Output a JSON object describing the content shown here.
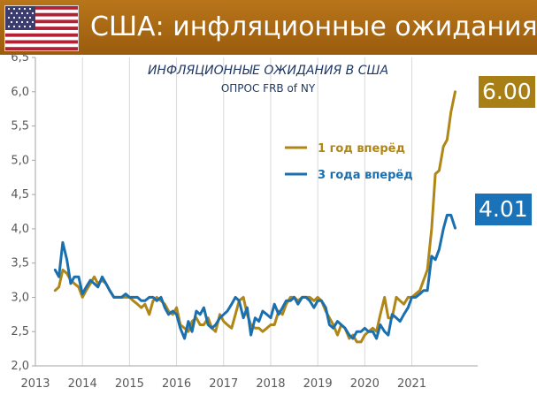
{
  "header": {
    "title": "США: инфляционные ожидания",
    "colors": {
      "banner": "#a9650f",
      "text": "#ffffff"
    }
  },
  "callouts": {
    "one_year_value": "6.00",
    "three_year_value": "4.01"
  },
  "chart_data": {
    "type": "line",
    "title": "ИНФЛЯЦИОННЫЕ ОЖИДАНИЯ В США",
    "subtitle": "ОПРОС FRB of NY",
    "xlabel": "",
    "ylabel": "",
    "xlim": [
      2013,
      2022.4
    ],
    "ylim": [
      2.0,
      6.5
    ],
    "xticks": [
      "2013",
      "2014",
      "2015",
      "2016",
      "2017",
      "2018",
      "2019",
      "2020",
      "2021"
    ],
    "yticks": [
      "2,0",
      "2,5",
      "3,0",
      "3,5",
      "4,0",
      "4,5",
      "5,0",
      "5,5",
      "6,0",
      "6,5"
    ],
    "grid": "vertical",
    "legend_position": "upper-center",
    "series": [
      {
        "name": "1 год вперёд",
        "color": "#b08617",
        "points": [
          [
            2013.42,
            3.1
          ],
          [
            2013.5,
            3.15
          ],
          [
            2013.58,
            3.4
          ],
          [
            2013.67,
            3.35
          ],
          [
            2013.75,
            3.25
          ],
          [
            2013.83,
            3.2
          ],
          [
            2013.92,
            3.15
          ],
          [
            2014.0,
            3.0
          ],
          [
            2014.08,
            3.1
          ],
          [
            2014.17,
            3.2
          ],
          [
            2014.25,
            3.3
          ],
          [
            2014.33,
            3.2
          ],
          [
            2014.42,
            3.25
          ],
          [
            2014.5,
            3.2
          ],
          [
            2014.58,
            3.1
          ],
          [
            2014.67,
            3.0
          ],
          [
            2014.75,
            3.0
          ],
          [
            2014.83,
            3.0
          ],
          [
            2014.92,
            3.0
          ],
          [
            2015.0,
            3.0
          ],
          [
            2015.08,
            2.95
          ],
          [
            2015.17,
            2.9
          ],
          [
            2015.25,
            2.85
          ],
          [
            2015.33,
            2.9
          ],
          [
            2015.42,
            2.75
          ],
          [
            2015.5,
            2.95
          ],
          [
            2015.58,
            3.0
          ],
          [
            2015.67,
            2.95
          ],
          [
            2015.75,
            2.9
          ],
          [
            2015.83,
            2.8
          ],
          [
            2015.92,
            2.75
          ],
          [
            2016.0,
            2.85
          ],
          [
            2016.08,
            2.6
          ],
          [
            2016.17,
            2.55
          ],
          [
            2016.25,
            2.5
          ],
          [
            2016.33,
            2.65
          ],
          [
            2016.42,
            2.7
          ],
          [
            2016.5,
            2.6
          ],
          [
            2016.58,
            2.6
          ],
          [
            2016.67,
            2.7
          ],
          [
            2016.75,
            2.55
          ],
          [
            2016.83,
            2.5
          ],
          [
            2016.92,
            2.75
          ],
          [
            2017.0,
            2.65
          ],
          [
            2017.08,
            2.6
          ],
          [
            2017.17,
            2.55
          ],
          [
            2017.25,
            2.75
          ],
          [
            2017.33,
            2.95
          ],
          [
            2017.42,
            3.0
          ],
          [
            2017.5,
            2.75
          ],
          [
            2017.58,
            2.6
          ],
          [
            2017.67,
            2.55
          ],
          [
            2017.75,
            2.55
          ],
          [
            2017.83,
            2.5
          ],
          [
            2017.92,
            2.55
          ],
          [
            2018.0,
            2.6
          ],
          [
            2018.08,
            2.6
          ],
          [
            2018.17,
            2.8
          ],
          [
            2018.25,
            2.75
          ],
          [
            2018.33,
            2.9
          ],
          [
            2018.42,
            3.0
          ],
          [
            2018.5,
            3.0
          ],
          [
            2018.58,
            2.95
          ],
          [
            2018.67,
            3.0
          ],
          [
            2018.75,
            3.0
          ],
          [
            2018.83,
            3.0
          ],
          [
            2018.92,
            2.95
          ],
          [
            2019.0,
            3.0
          ],
          [
            2019.08,
            2.95
          ],
          [
            2019.17,
            2.8
          ],
          [
            2019.25,
            2.7
          ],
          [
            2019.33,
            2.6
          ],
          [
            2019.42,
            2.45
          ],
          [
            2019.5,
            2.6
          ],
          [
            2019.58,
            2.55
          ],
          [
            2019.67,
            2.4
          ],
          [
            2019.75,
            2.45
          ],
          [
            2019.83,
            2.35
          ],
          [
            2019.92,
            2.35
          ],
          [
            2020.0,
            2.45
          ],
          [
            2020.08,
            2.5
          ],
          [
            2020.17,
            2.55
          ],
          [
            2020.25,
            2.5
          ],
          [
            2020.33,
            2.75
          ],
          [
            2020.42,
            3.0
          ],
          [
            2020.5,
            2.7
          ],
          [
            2020.58,
            2.7
          ],
          [
            2020.67,
            3.0
          ],
          [
            2020.75,
            2.95
          ],
          [
            2020.83,
            2.9
          ],
          [
            2020.92,
            3.0
          ],
          [
            2021.0,
            3.0
          ],
          [
            2021.08,
            3.05
          ],
          [
            2021.17,
            3.1
          ],
          [
            2021.25,
            3.25
          ],
          [
            2021.33,
            3.4
          ],
          [
            2021.42,
            4.0
          ],
          [
            2021.5,
            4.8
          ],
          [
            2021.58,
            4.85
          ],
          [
            2021.67,
            5.2
          ],
          [
            2021.75,
            5.3
          ],
          [
            2021.83,
            5.7
          ],
          [
            2021.92,
            6.0
          ]
        ]
      },
      {
        "name": "3 года вперёд",
        "color": "#1a6faf",
        "points": [
          [
            2013.42,
            3.4
          ],
          [
            2013.5,
            3.3
          ],
          [
            2013.58,
            3.8
          ],
          [
            2013.67,
            3.55
          ],
          [
            2013.75,
            3.2
          ],
          [
            2013.83,
            3.3
          ],
          [
            2013.92,
            3.3
          ],
          [
            2014.0,
            3.05
          ],
          [
            2014.08,
            3.15
          ],
          [
            2014.17,
            3.25
          ],
          [
            2014.25,
            3.2
          ],
          [
            2014.33,
            3.15
          ],
          [
            2014.42,
            3.3
          ],
          [
            2014.5,
            3.2
          ],
          [
            2014.58,
            3.1
          ],
          [
            2014.67,
            3.0
          ],
          [
            2014.75,
            3.0
          ],
          [
            2014.83,
            3.0
          ],
          [
            2014.92,
            3.05
          ],
          [
            2015.0,
            3.0
          ],
          [
            2015.08,
            3.0
          ],
          [
            2015.17,
            3.0
          ],
          [
            2015.25,
            2.95
          ],
          [
            2015.33,
            2.95
          ],
          [
            2015.42,
            3.0
          ],
          [
            2015.5,
            3.0
          ],
          [
            2015.58,
            2.95
          ],
          [
            2015.67,
            3.0
          ],
          [
            2015.75,
            2.85
          ],
          [
            2015.83,
            2.75
          ],
          [
            2015.92,
            2.8
          ],
          [
            2016.0,
            2.75
          ],
          [
            2016.08,
            2.55
          ],
          [
            2016.17,
            2.4
          ],
          [
            2016.25,
            2.65
          ],
          [
            2016.33,
            2.5
          ],
          [
            2016.42,
            2.8
          ],
          [
            2016.5,
            2.75
          ],
          [
            2016.58,
            2.85
          ],
          [
            2016.67,
            2.6
          ],
          [
            2016.75,
            2.55
          ],
          [
            2016.83,
            2.6
          ],
          [
            2016.92,
            2.7
          ],
          [
            2017.0,
            2.75
          ],
          [
            2017.08,
            2.8
          ],
          [
            2017.17,
            2.9
          ],
          [
            2017.25,
            3.0
          ],
          [
            2017.33,
            2.95
          ],
          [
            2017.42,
            2.7
          ],
          [
            2017.5,
            2.85
          ],
          [
            2017.58,
            2.45
          ],
          [
            2017.67,
            2.7
          ],
          [
            2017.75,
            2.65
          ],
          [
            2017.83,
            2.8
          ],
          [
            2017.92,
            2.75
          ],
          [
            2018.0,
            2.7
          ],
          [
            2018.08,
            2.9
          ],
          [
            2018.17,
            2.75
          ],
          [
            2018.25,
            2.85
          ],
          [
            2018.33,
            2.95
          ],
          [
            2018.42,
            2.95
          ],
          [
            2018.5,
            3.0
          ],
          [
            2018.58,
            2.9
          ],
          [
            2018.67,
            3.0
          ],
          [
            2018.75,
            3.0
          ],
          [
            2018.83,
            2.95
          ],
          [
            2018.92,
            2.85
          ],
          [
            2019.0,
            2.95
          ],
          [
            2019.08,
            2.95
          ],
          [
            2019.17,
            2.85
          ],
          [
            2019.25,
            2.6
          ],
          [
            2019.33,
            2.55
          ],
          [
            2019.42,
            2.65
          ],
          [
            2019.5,
            2.6
          ],
          [
            2019.58,
            2.55
          ],
          [
            2019.67,
            2.45
          ],
          [
            2019.75,
            2.4
          ],
          [
            2019.83,
            2.5
          ],
          [
            2019.92,
            2.5
          ],
          [
            2020.0,
            2.55
          ],
          [
            2020.08,
            2.5
          ],
          [
            2020.17,
            2.5
          ],
          [
            2020.25,
            2.4
          ],
          [
            2020.33,
            2.6
          ],
          [
            2020.42,
            2.5
          ],
          [
            2020.5,
            2.45
          ],
          [
            2020.58,
            2.75
          ],
          [
            2020.67,
            2.7
          ],
          [
            2020.75,
            2.65
          ],
          [
            2020.83,
            2.75
          ],
          [
            2020.92,
            2.85
          ],
          [
            2021.0,
            3.0
          ],
          [
            2021.08,
            3.0
          ],
          [
            2021.17,
            3.05
          ],
          [
            2021.25,
            3.1
          ],
          [
            2021.33,
            3.1
          ],
          [
            2021.42,
            3.6
          ],
          [
            2021.5,
            3.55
          ],
          [
            2021.58,
            3.7
          ],
          [
            2021.67,
            4.0
          ],
          [
            2021.75,
            4.2
          ],
          [
            2021.83,
            4.2
          ],
          [
            2021.92,
            4.01
          ]
        ]
      }
    ]
  }
}
